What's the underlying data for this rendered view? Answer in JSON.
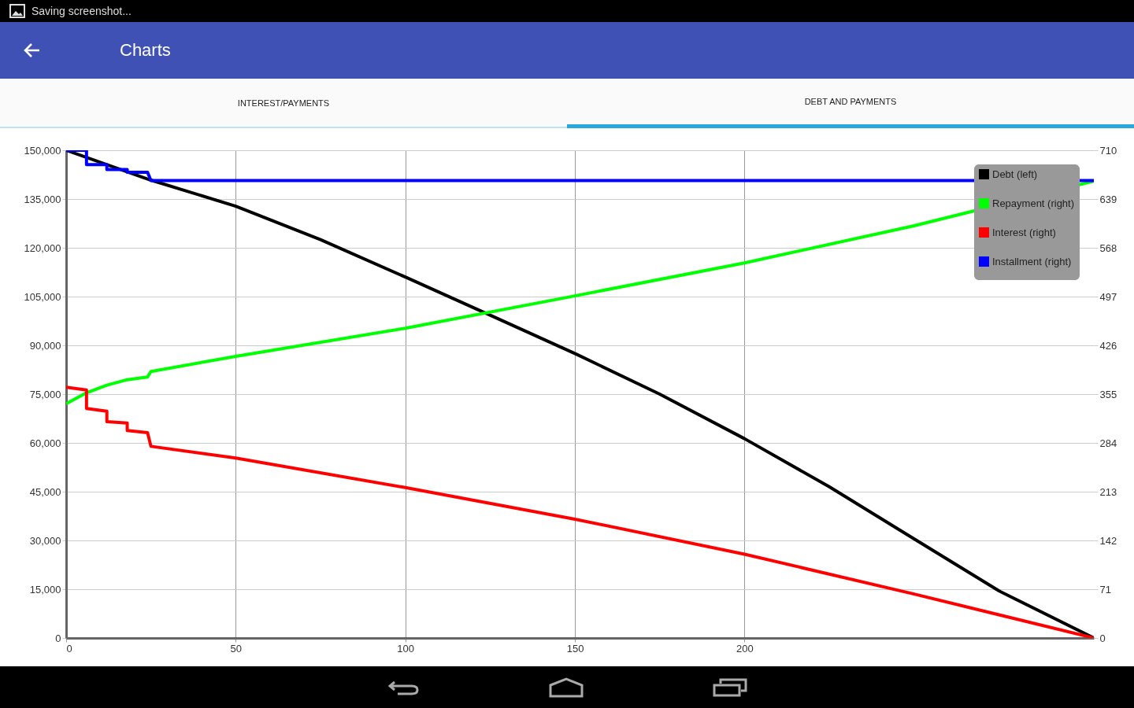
{
  "chart_data": {
    "type": "line",
    "title": "Charts",
    "annotations": [
      "Saving screenshot...",
      "INTEREST/PAYMENTS",
      "DEBT AND PAYMENTS"
    ],
    "xlim": [
      0,
      303
    ],
    "xticks": [
      0,
      50,
      100,
      150,
      200
    ],
    "ylim": [
      0,
      150000
    ],
    "yticks": [
      {
        "value": 0,
        "label": "0"
      },
      {
        "value": 15000,
        "label": "15,000"
      },
      {
        "value": 30000,
        "label": "30,000"
      },
      {
        "value": 45000,
        "label": "45,000"
      },
      {
        "value": 60000,
        "label": "60,000"
      },
      {
        "value": 75000,
        "label": "75,000"
      },
      {
        "value": 90000,
        "label": "90,000"
      },
      {
        "value": 105000,
        "label": "105,000"
      },
      {
        "value": 120000,
        "label": "120,000"
      },
      {
        "value": 135000,
        "label": "135,000"
      },
      {
        "value": 150000,
        "label": "150,000"
      }
    ],
    "y2lim": [
      0,
      710
    ],
    "y2ticks": [
      0,
      71,
      142,
      213,
      284,
      355,
      426,
      497,
      568,
      639,
      710
    ],
    "grid": true,
    "legend": "top right",
    "line_style": "solid",
    "series": [
      {
        "name": "Debt (left)",
        "color": "#000000",
        "x": [
          0,
          25,
          50,
          75,
          100,
          125,
          150,
          175,
          200,
          225,
          250,
          275,
          303
        ],
        "values": [
          150000,
          140800,
          132800,
          122500,
          111000,
          99300,
          87500,
          75000,
          61300,
          46500,
          30500,
          14500,
          0
        ]
      },
      {
        "name": "Repayment (right)",
        "color": "#00ff00",
        "axis": "y2",
        "x": [
          0,
          6,
          12,
          18,
          24,
          25,
          50,
          100,
          150,
          200,
          250,
          303
        ],
        "values": [
          341,
          357,
          368,
          376,
          380,
          388,
          410,
          451,
          498,
          546,
          600,
          665
        ]
      },
      {
        "name": "Interest (right)",
        "color": "#ff0000",
        "axis": "y2",
        "x": [
          0,
          6,
          6,
          12,
          12,
          18,
          18,
          24,
          25,
          50,
          100,
          150,
          200,
          250,
          303
        ],
        "values": [
          365,
          361,
          334,
          330,
          315,
          313,
          302,
          299,
          279,
          262,
          219,
          173,
          122,
          64,
          0
        ]
      },
      {
        "name": "Installment (right)",
        "color": "#0000ff",
        "axis": "y2",
        "x": [
          0,
          6,
          6,
          12,
          12,
          18,
          18,
          24,
          25,
          303
        ],
        "values": [
          710,
          710,
          689,
          689,
          682,
          682,
          678,
          678,
          666,
          666
        ]
      }
    ]
  }
}
